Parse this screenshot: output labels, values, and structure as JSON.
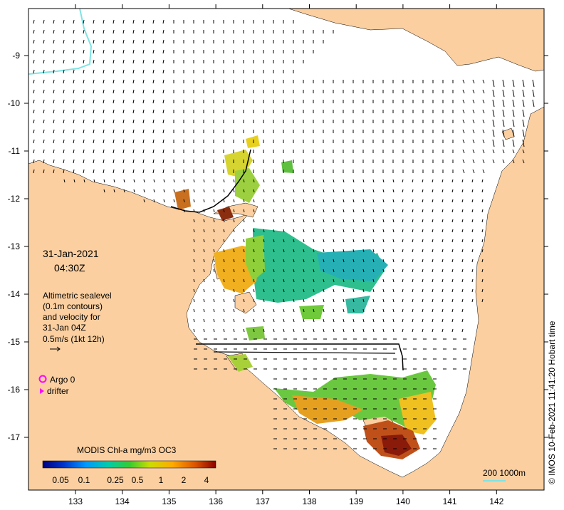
{
  "map": {
    "lon_ticks": [
      "133",
      "134",
      "135",
      "136",
      "137",
      "138",
      "139",
      "140",
      "141",
      "142"
    ],
    "lat_ticks": [
      "-9",
      "-10",
      "-11",
      "-12",
      "-13",
      "-14",
      "-15",
      "-16",
      "-17"
    ],
    "date": "31-Jan-2021",
    "time": "04:30Z",
    "description_lines": [
      "Altimetric sealevel",
      "(0.1m contours)",
      "and velocity for",
      "31-Jan 04Z",
      "0.5m/s (1kt 12h)"
    ],
    "legend": {
      "argo": "Argo 0",
      "drifter": "drifter"
    },
    "colorbar": {
      "title": "MODIS Chl-a mg/m3 OC3",
      "ticks": [
        "0.05",
        "0.1",
        "0.25",
        "0.5",
        "1",
        "2",
        "4"
      ]
    },
    "depth_legend": "200  1000m",
    "credit": "© IMOS 10-Feb-2021 11:41:20 Hobart time",
    "colors": {
      "land": "#fbcfa0",
      "ocean": "#ffffff",
      "frame": "#000000",
      "argo": "#ff00ff",
      "isobath": "#7fe3e3"
    }
  }
}
